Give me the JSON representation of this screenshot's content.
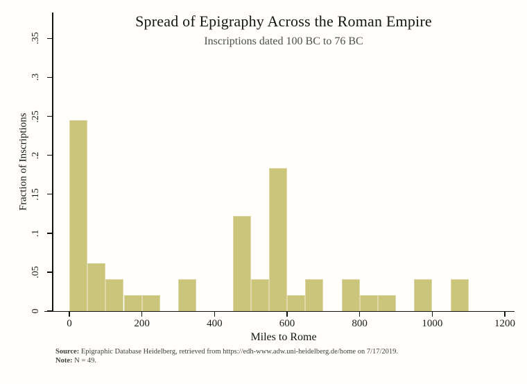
{
  "header": {
    "title": "Spread of Epigraphy Across the Roman Empire",
    "subtitle": "Inscriptions dated 100 BC to 76 BC"
  },
  "chart_data": {
    "type": "bar",
    "subtype": "histogram",
    "title": "Spread of Epigraphy Across the Roman Empire",
    "subtitle": "Inscriptions dated 100 BC to 76 BC",
    "xlabel": "Miles to Rome",
    "ylabel": "Fraction of Inscriptions",
    "n_total": 49,
    "bin_width_miles": 50,
    "xlim": [
      0,
      1200
    ],
    "ylim": [
      0,
      0.35
    ],
    "grid": false,
    "legend_position": "none",
    "x_ticks": [
      0,
      200,
      400,
      600,
      800,
      1000,
      1200
    ],
    "y_ticks": [
      {
        "value": 0,
        "label": "0"
      },
      {
        "value": 0.05,
        "label": ".05"
      },
      {
        "value": 0.1,
        "label": ".1"
      },
      {
        "value": 0.15,
        "label": ".15"
      },
      {
        "value": 0.2,
        "label": ".2"
      },
      {
        "value": 0.25,
        "label": ".25"
      },
      {
        "value": 0.3,
        "label": ".3"
      },
      {
        "value": 0.35,
        "label": ".35"
      }
    ],
    "bins": [
      {
        "start": 0,
        "end": 50,
        "count": 12,
        "fraction": 0.2449
      },
      {
        "start": 50,
        "end": 100,
        "count": 3,
        "fraction": 0.0612
      },
      {
        "start": 100,
        "end": 150,
        "count": 2,
        "fraction": 0.0408
      },
      {
        "start": 150,
        "end": 200,
        "count": 1,
        "fraction": 0.0204
      },
      {
        "start": 200,
        "end": 250,
        "count": 1,
        "fraction": 0.0204
      },
      {
        "start": 300,
        "end": 350,
        "count": 2,
        "fraction": 0.0408
      },
      {
        "start": 450,
        "end": 500,
        "count": 6,
        "fraction": 0.1224
      },
      {
        "start": 500,
        "end": 550,
        "count": 2,
        "fraction": 0.0408
      },
      {
        "start": 550,
        "end": 600,
        "count": 9,
        "fraction": 0.1837
      },
      {
        "start": 600,
        "end": 650,
        "count": 1,
        "fraction": 0.0204
      },
      {
        "start": 650,
        "end": 700,
        "count": 2,
        "fraction": 0.0408
      },
      {
        "start": 750,
        "end": 800,
        "count": 2,
        "fraction": 0.0408
      },
      {
        "start": 800,
        "end": 850,
        "count": 1,
        "fraction": 0.0204
      },
      {
        "start": 850,
        "end": 900,
        "count": 1,
        "fraction": 0.0204
      },
      {
        "start": 950,
        "end": 1000,
        "count": 2,
        "fraction": 0.0408
      },
      {
        "start": 1050,
        "end": 1100,
        "count": 2,
        "fraction": 0.0408
      }
    ],
    "colors": {
      "bar_fill": "#cbc47b",
      "bar_border": "#ddd8a6",
      "axis": "#111111",
      "background": "#fffefa",
      "subtitle_text": "#4d4d4d",
      "footnote_text": "#3f3f3f"
    }
  },
  "footnote": {
    "source_label": "Source:",
    "source_text": "Epigraphic Database Heidelberg, retrieved from https://edh-www.adw.uni-heidelberg.de/home on 7/17/2019.",
    "note_label": "Note:",
    "note_text": "N = 49."
  }
}
